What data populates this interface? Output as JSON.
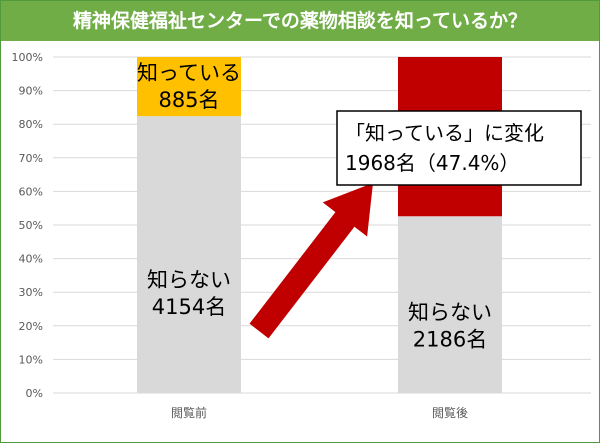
{
  "header": {
    "title": "精神保健福祉センターでの薬物相談を知っているか？"
  },
  "colors": {
    "title_bg": "#70ad47",
    "unknown": "#d9d9d9",
    "known_before": "#ffc000",
    "known_after": "#c00000",
    "arrow": "#c00000",
    "gridline": "#d9d9d9"
  },
  "chart_data": {
    "type": "bar",
    "stacked": true,
    "percent_stacked": true,
    "categories": [
      "閲覧前",
      "閲覧後"
    ],
    "ylim": [
      0,
      100
    ],
    "yticks": [
      "0%",
      "10%",
      "20%",
      "30%",
      "40%",
      "50%",
      "60%",
      "70%",
      "80%",
      "90%",
      "100%"
    ],
    "grid": true,
    "series": [
      {
        "values": [
          82.4,
          52.6
        ],
        "labels": [
          [
            "知らない",
            "4154名"
          ],
          [
            "知らない",
            "2186名"
          ]
        ]
      },
      {
        "values": [
          17.6,
          47.4
        ],
        "labels": [
          [
            "知っている",
            "885名"
          ],
          [
            "",
            ""
          ]
        ]
      }
    ],
    "annotation": {
      "lines": [
        "「知っている」に変化",
        "1968名（47.4%）"
      ]
    }
  }
}
